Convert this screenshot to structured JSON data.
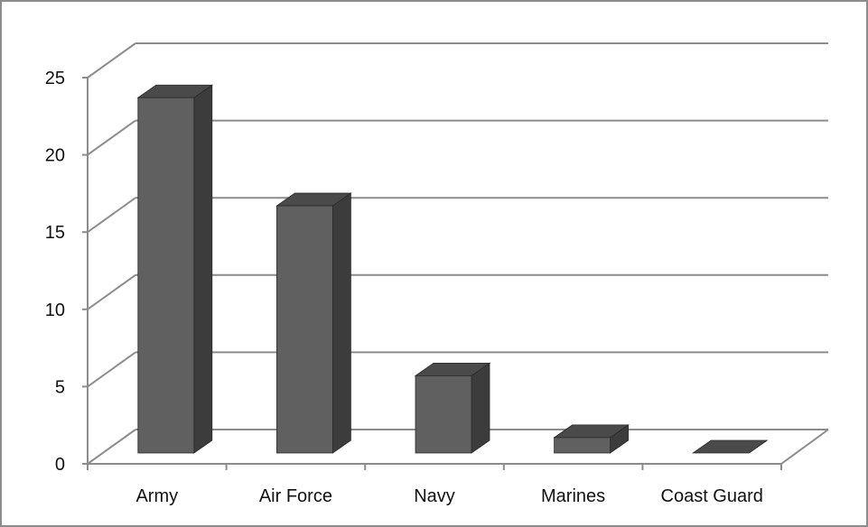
{
  "chart_data": {
    "type": "bar",
    "style": "3d-column",
    "categories": [
      "Army",
      "Air Force",
      "Navy",
      "Marines",
      "Coast Guard"
    ],
    "values": [
      23,
      16,
      5,
      1,
      0
    ],
    "title": "",
    "xlabel": "",
    "ylabel": "",
    "ylim": [
      0,
      25
    ],
    "yticks": [
      "0",
      "5",
      "10",
      "15",
      "20",
      "25"
    ],
    "grid": true,
    "legend": "none",
    "colors": {
      "bar_front": "#606060",
      "bar_top": "#4a4a4a",
      "bar_side": "#3c3c3c",
      "grid": "#8c8c8c",
      "axis": "#8c8c8c"
    }
  }
}
